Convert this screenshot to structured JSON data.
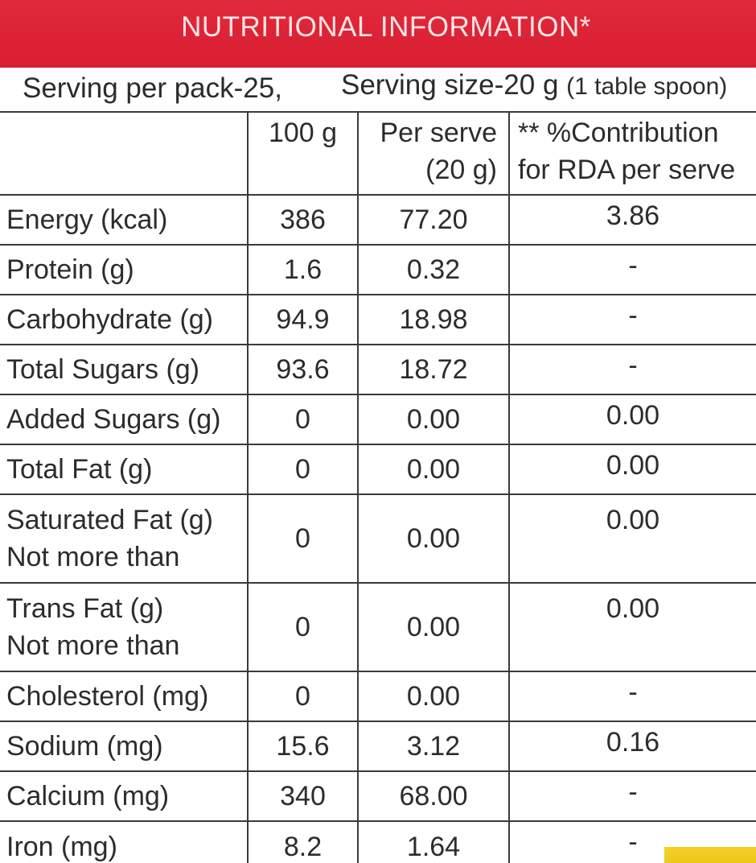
{
  "header": {
    "title": "NUTRITIONAL INFORMATION*"
  },
  "serving": {
    "per_pack": "Serving per pack-25,",
    "size": "Serving size-20 g",
    "size_note": "(1 table spoon)"
  },
  "columns": {
    "per_100g": "100 g",
    "per_serve_line1": "Per serve",
    "per_serve_line2": "(20 g)",
    "rda_line1": "** %Contribution",
    "rda_line2": "for RDA per serve"
  },
  "rows": [
    {
      "name": "Energy (kcal)",
      "name2": "",
      "per_100g": "386",
      "per_serve": "77.20",
      "rda": "3.86"
    },
    {
      "name": "Protein (g)",
      "name2": "",
      "per_100g": "1.6",
      "per_serve": "0.32",
      "rda": "-"
    },
    {
      "name": "Carbohydrate (g)",
      "name2": "",
      "per_100g": "94.9",
      "per_serve": "18.98",
      "rda": "-"
    },
    {
      "name": "Total Sugars (g)",
      "name2": "",
      "per_100g": "93.6",
      "per_serve": "18.72",
      "rda": "-"
    },
    {
      "name": "Added Sugars (g)",
      "name2": "",
      "per_100g": "0",
      "per_serve": "0.00",
      "rda": "0.00"
    },
    {
      "name": "Total Fat (g)",
      "name2": "",
      "per_100g": "0",
      "per_serve": "0.00",
      "rda": "0.00"
    },
    {
      "name": "Saturated Fat (g)",
      "name2": "Not more than",
      "per_100g": "0",
      "per_serve": "0.00",
      "rda": "0.00"
    },
    {
      "name": "Trans Fat (g)",
      "name2": "Not more than",
      "per_100g": "0",
      "per_serve": "0.00",
      "rda": "0.00"
    },
    {
      "name": "Cholesterol (mg)",
      "name2": "",
      "per_100g": "0",
      "per_serve": "0.00",
      "rda": "-"
    },
    {
      "name": "Sodium (mg)",
      "name2": "",
      "per_100g": "15.6",
      "per_serve": "3.12",
      "rda": "0.16"
    },
    {
      "name": "Calcium (mg)",
      "name2": "",
      "per_100g": "340",
      "per_serve": "68.00",
      "rda": "-"
    },
    {
      "name": "Iron (mg)",
      "name2": "",
      "per_100g": "8.2",
      "per_serve": "1.64",
      "rda": "-"
    }
  ],
  "colors": {
    "header_red": "#dc2436",
    "accent_yellow": "#f1cc22"
  }
}
